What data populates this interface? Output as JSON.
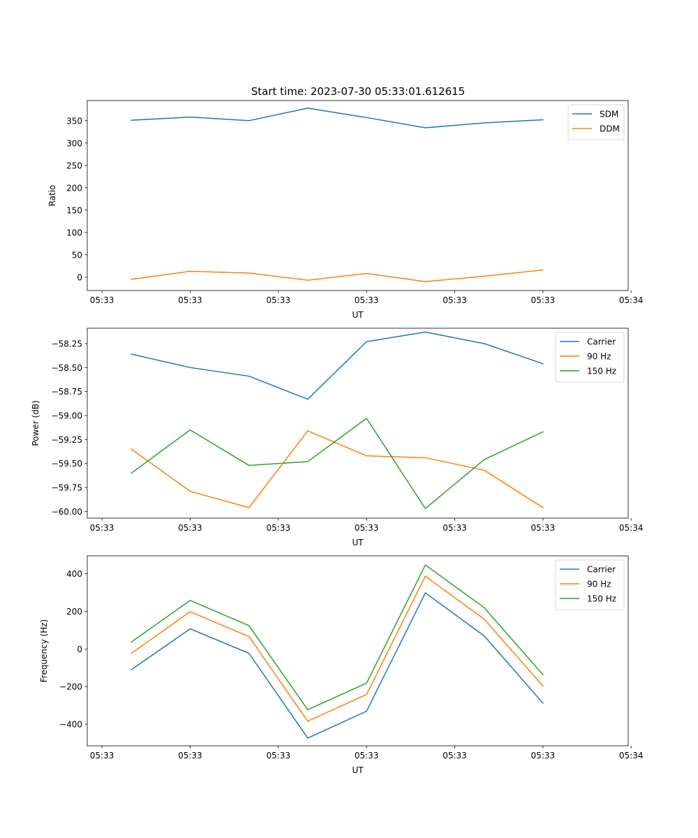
{
  "figure": {
    "title": "Start time: 2023-07-30 05:33:01.612615"
  },
  "chart_data": [
    {
      "type": "line",
      "title": "Start time: 2023-07-30 05:33:01.612615",
      "xlabel": "UT",
      "ylabel": "Ratio",
      "x": [
        1,
        2,
        3,
        4,
        5,
        6,
        7,
        8
      ],
      "xlim": [
        0.25,
        9.45
      ],
      "x_ticks": [
        0.5,
        2,
        3.5,
        5,
        6.5,
        8,
        9.5
      ],
      "x_tick_labels": [
        "05:33",
        "05:33",
        "05:33",
        "05:33",
        "05:33",
        "05:33",
        "05:34"
      ],
      "ylim": [
        -30,
        395
      ],
      "y_ticks": [
        0,
        50,
        100,
        150,
        200,
        250,
        300,
        350
      ],
      "y_tick_labels": [
        "0",
        "50",
        "100",
        "150",
        "200",
        "250",
        "300",
        "350"
      ],
      "legend_position": "top-right",
      "series": [
        {
          "name": "SDM",
          "color": "#1f77b4",
          "values": [
            351,
            358,
            350,
            378,
            357,
            334,
            345,
            352
          ]
        },
        {
          "name": "DDM",
          "color": "#ff7f0e",
          "values": [
            -5,
            13,
            9,
            -7,
            8,
            -10,
            2,
            16
          ]
        }
      ]
    },
    {
      "type": "line",
      "title": "",
      "xlabel": "UT",
      "ylabel": "Power (dB)",
      "x": [
        1,
        2,
        3,
        4,
        5,
        6,
        7,
        8
      ],
      "xlim": [
        0.25,
        9.45
      ],
      "x_ticks": [
        0.5,
        2,
        3.5,
        5,
        6.5,
        8,
        9.5
      ],
      "x_tick_labels": [
        "05:33",
        "05:33",
        "05:33",
        "05:33",
        "05:33",
        "05:33",
        "05:34"
      ],
      "ylim": [
        -60.07,
        -58.09
      ],
      "y_ticks": [
        -58.25,
        -58.5,
        -58.75,
        -59.0,
        -59.25,
        -59.5,
        -59.75,
        -60.0
      ],
      "y_tick_labels": [
        "−58.25",
        "−58.50",
        "−58.75",
        "−59.00",
        "−59.25",
        "−59.50",
        "−59.75",
        "−60.00"
      ],
      "legend_position": "top-right",
      "series": [
        {
          "name": "Carrier",
          "color": "#1f77b4",
          "values": [
            -58.36,
            -58.5,
            -58.59,
            -58.83,
            -58.23,
            -58.13,
            -58.25,
            -58.46
          ]
        },
        {
          "name": "90 Hz",
          "color": "#ff7f0e",
          "values": [
            -59.35,
            -59.79,
            -59.96,
            -59.16,
            -59.42,
            -59.44,
            -59.57,
            -59.96
          ]
        },
        {
          "name": "150 Hz",
          "color": "#2ca02c",
          "values": [
            -59.6,
            -59.15,
            -59.52,
            -59.48,
            -59.03,
            -59.97,
            -59.46,
            -59.17
          ]
        }
      ]
    },
    {
      "type": "line",
      "title": "",
      "xlabel": "UT",
      "ylabel": "Frequency (Hz)",
      "x": [
        1,
        2,
        3,
        4,
        5,
        6,
        7,
        8
      ],
      "xlim": [
        0.25,
        9.45
      ],
      "x_ticks": [
        0.5,
        2,
        3.5,
        5,
        6.5,
        8,
        9.5
      ],
      "x_tick_labels": [
        "05:33",
        "05:33",
        "05:33",
        "05:33",
        "05:33",
        "05:33",
        "05:34"
      ],
      "ylim": [
        -515,
        495
      ],
      "y_ticks": [
        400,
        200,
        0,
        -200,
        -400
      ],
      "y_tick_labels": [
        "400",
        "200",
        "0",
        "−200",
        "−400"
      ],
      "legend_position": "top-right",
      "series": [
        {
          "name": "Carrier",
          "color": "#1f77b4",
          "values": [
            -110,
            107,
            -23,
            -474,
            -331,
            298,
            70,
            -288
          ]
        },
        {
          "name": "90 Hz",
          "color": "#ff7f0e",
          "values": [
            -23,
            198,
            66,
            -384,
            -242,
            387,
            159,
            -197
          ]
        },
        {
          "name": "150 Hz",
          "color": "#2ca02c",
          "values": [
            37,
            258,
            124,
            -323,
            -182,
            447,
            220,
            -137
          ]
        }
      ]
    }
  ]
}
